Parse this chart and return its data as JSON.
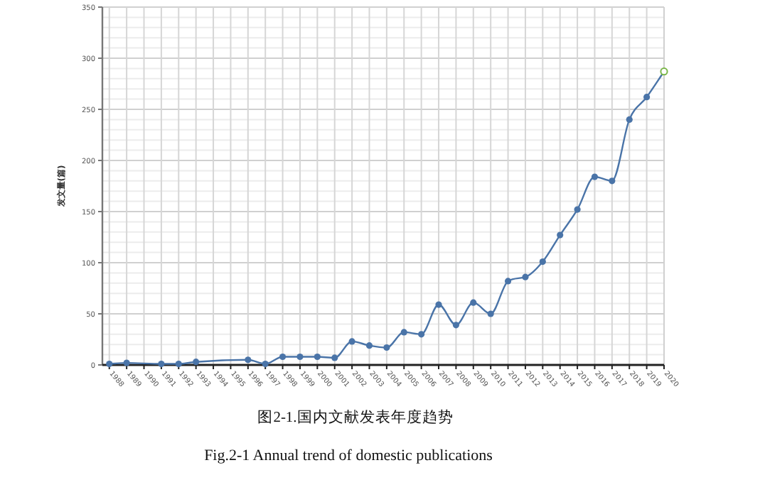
{
  "chart_data": {
    "type": "line",
    "title": "图2-1.国内文献发表年度趋势",
    "subtitle": "Fig.2-1 Annual trend of domestic publications",
    "ylabel": "发文量(篇)",
    "xlim": [
      1987.6,
      2020
    ],
    "xticks": [
      1988,
      1989,
      1990,
      1991,
      1992,
      1993,
      1994,
      1995,
      1996,
      1997,
      1998,
      1999,
      2000,
      2001,
      2002,
      2003,
      2004,
      2005,
      2006,
      2007,
      2008,
      2009,
      2010,
      2011,
      2012,
      2013,
      2014,
      2015,
      2016,
      2017,
      2018,
      2019,
      2020
    ],
    "ylim": [
      0,
      350
    ],
    "yticks": [
      0,
      50,
      100,
      150,
      200,
      250,
      300,
      350
    ],
    "grid": true,
    "marker": "circle",
    "line_style": "solid",
    "series": [
      {
        "color": "#4a74a8",
        "x": [
          1988,
          1989,
          1991,
          1992,
          1993,
          1996,
          1997,
          1998,
          1999,
          2000,
          2001,
          2002,
          2003,
          2004,
          2005,
          2006,
          2007,
          2008,
          2009,
          2010,
          2011,
          2012,
          2013,
          2014,
          2015,
          2016,
          2017,
          2018,
          2019,
          2020
        ],
        "values": [
          1,
          2,
          1,
          1,
          3,
          5,
          1,
          8,
          8,
          8,
          7,
          23,
          19,
          17,
          32,
          30,
          59,
          39,
          61,
          50,
          82,
          86,
          101,
          127,
          152,
          184,
          180,
          240,
          262,
          287
        ]
      },
      {
        "type": "scatter",
        "color": "#7ab648",
        "x": [
          2020
        ],
        "values": [
          287
        ]
      }
    ]
  }
}
